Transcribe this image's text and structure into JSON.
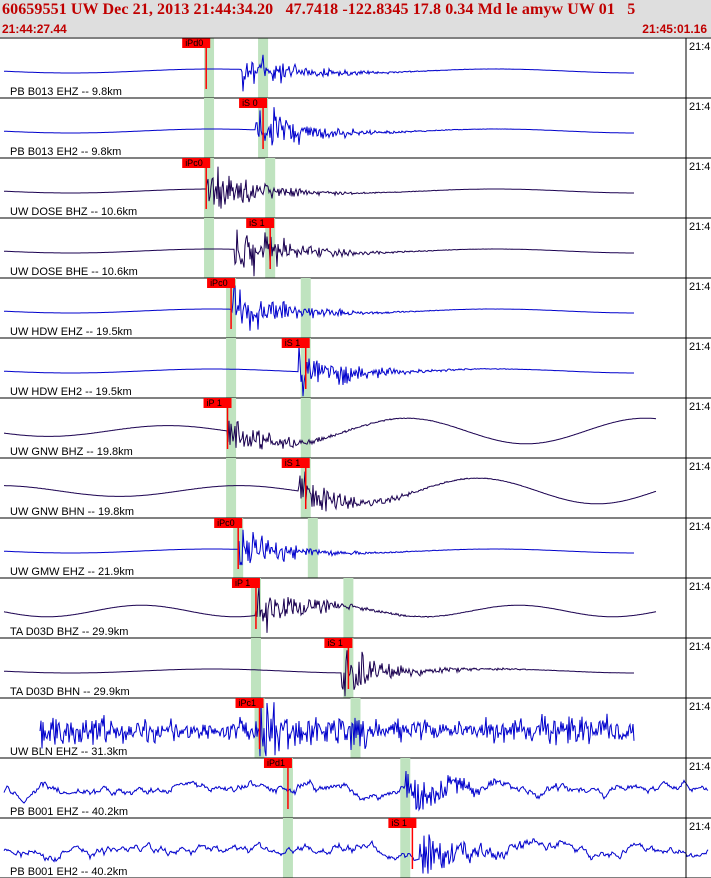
{
  "header": {
    "title": "60659551 UW Dec 21, 2013 21:44:34.20   47.7418 -122.8345 17.8 0.34 Md le amyw UW 01   5",
    "start_time": "21:44:27.44",
    "end_time": "21:45:01.16"
  },
  "tick_label": "21:4",
  "colors": {
    "background": "#ffffff",
    "header_bg": "#dedede",
    "title_text": "#c00000",
    "trace_blue": "#0000cc",
    "trace_dark": "#1a0050",
    "pick_red": "#ff0000",
    "window_green": "#bfe3bf"
  },
  "chart_data": {
    "type": "line",
    "x_unit": "time",
    "x_start": "21:44:27.44",
    "x_end": "21:45:01.16",
    "traces": [
      {
        "label": "PB B013 EHZ -- 9.8km",
        "pick": "iPd0",
        "pick_frac": 0.29,
        "green_frac": [
          0.294,
          0.37
        ],
        "color": "blue",
        "style": "quake",
        "onset": 0.34,
        "amp": 0.55
      },
      {
        "label": "PB B013 EH2 -- 9.8km",
        "pick": "iS 0",
        "pick_frac": 0.37,
        "green_frac": [
          0.294,
          0.37
        ],
        "color": "blue",
        "style": "quake",
        "onset": 0.36,
        "amp": 0.6
      },
      {
        "label": "UW DOSE BHZ -- 10.6km",
        "pick": "iPc0",
        "pick_frac": 0.29,
        "green_frac": [
          0.294,
          0.38
        ],
        "color": "dark",
        "style": "quake",
        "onset": 0.29,
        "amp": 0.65
      },
      {
        "label": "UW DOSE BHE -- 10.6km",
        "pick": "iS 1",
        "pick_frac": 0.38,
        "green_frac": [
          0.294,
          0.38
        ],
        "color": "dark",
        "style": "quake",
        "onset": 0.33,
        "amp": 0.7
      },
      {
        "label": "UW HDW EHZ -- 19.5km",
        "pick": "iPc0",
        "pick_frac": 0.325,
        "green_frac": [
          0.325,
          0.43
        ],
        "color": "blue",
        "style": "quake",
        "onset": 0.325,
        "amp": 0.7
      },
      {
        "label": "UW HDW EH2 -- 19.5km",
        "pick": "iS 1",
        "pick_frac": 0.43,
        "green_frac": [
          0.325,
          0.43
        ],
        "color": "blue",
        "style": "quake",
        "onset": 0.42,
        "amp": 0.6
      },
      {
        "label": "UW GNW BHZ -- 19.8km",
        "pick": "iP 1",
        "pick_frac": 0.32,
        "green_frac": [
          0.325,
          0.43
        ],
        "color": "dark",
        "style": "swell",
        "onset": 0.32,
        "amp": 0.45
      },
      {
        "label": "UW GNW BHN -- 19.8km",
        "pick": "iS 1",
        "pick_frac": 0.43,
        "green_frac": [
          0.325,
          0.43
        ],
        "color": "dark",
        "style": "swell",
        "onset": 0.42,
        "amp": 0.45
      },
      {
        "label": "UW GMW EHZ -- 21.9km",
        "pick": "iPc0",
        "pick_frac": 0.335,
        "green_frac": [
          0.335,
          0.44
        ],
        "color": "blue",
        "style": "quake",
        "onset": 0.335,
        "amp": 0.5
      },
      {
        "label": "TA D03D BHZ -- 29.9km",
        "pick": "iP 1",
        "pick_frac": 0.36,
        "green_frac": [
          0.36,
          0.49
        ],
        "color": "dark",
        "style": "swell2",
        "onset": 0.36,
        "amp": 0.55
      },
      {
        "label": "TA D03D BHN -- 29.9km",
        "pick": "iS 1",
        "pick_frac": 0.49,
        "green_frac": [
          0.36,
          0.49
        ],
        "color": "dark",
        "style": "quake",
        "onset": 0.48,
        "amp": 0.6
      },
      {
        "label": "UW BLN EHZ -- 31.3km",
        "pick": "iPc1",
        "pick_frac": 0.365,
        "green_frac": [
          0.365,
          0.5
        ],
        "color": "blue",
        "style": "noise",
        "onset": 0.365,
        "amp": 0.8
      },
      {
        "label": "PB B001 EHZ -- 40.2km",
        "pick": "iPd1",
        "pick_frac": 0.405,
        "green_frac": [
          0.405,
          0.57
        ],
        "color": "blue",
        "style": "wander",
        "onset": 0.57,
        "amp": 0.55
      },
      {
        "label": "PB B001 EH2 -- 40.2km",
        "pick": "iS 1",
        "pick_frac": 0.58,
        "green_frac": [
          0.405,
          0.57
        ],
        "color": "blue",
        "style": "wander",
        "onset": 0.59,
        "amp": 0.6
      }
    ]
  }
}
